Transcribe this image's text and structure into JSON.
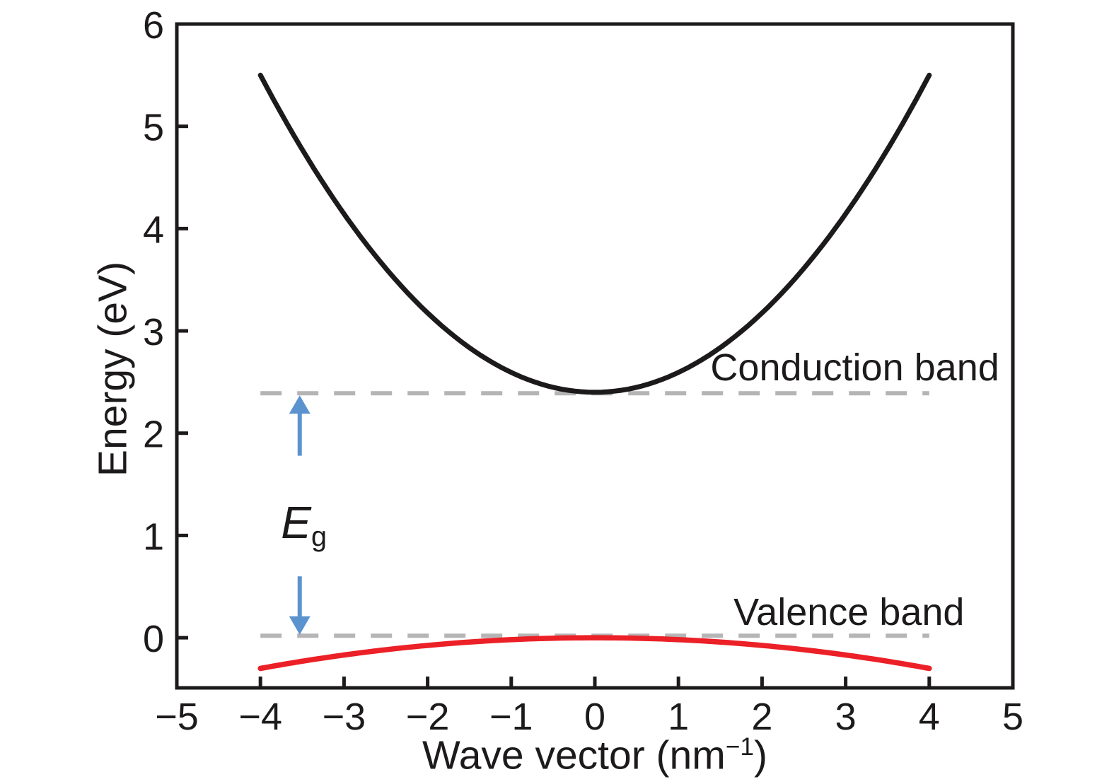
{
  "chart_data": {
    "type": "line",
    "description": "Semiconductor energy band structure: parabolic conduction and valence bands versus wave vector, with band gap Eg indicated",
    "xlabel": {
      "prefix": "Wave vector (nm",
      "sup": "−1",
      "suffix": ")"
    },
    "ylabel": "Energy (eV)",
    "xlim": [
      -5,
      5
    ],
    "ylim": [
      -0.49,
      6
    ],
    "grid": false,
    "legend": "none",
    "axis_color": "#1d1a1b",
    "x_ticks": {
      "values": [
        -5,
        -4,
        -3,
        -2,
        -1,
        0,
        1,
        2,
        3,
        4,
        5
      ],
      "labels": [
        "−5",
        "−4",
        "−3",
        "−2",
        "−1",
        "0",
        "1",
        "2",
        "3",
        "4",
        "5"
      ]
    },
    "y_ticks": {
      "values": [
        0,
        1,
        2,
        3,
        4,
        5,
        6
      ],
      "labels": [
        "0",
        "1",
        "2",
        "3",
        "4",
        "5",
        "6"
      ]
    },
    "series": [
      {
        "name": "Conduction band",
        "shape": "parabola",
        "color": "#1d1a1b",
        "stroke_width": 7,
        "vertex_k": 0,
        "vertex_energy_ev": 2.4,
        "coefficient": 0.19375,
        "k_range": [
          -4,
          4
        ],
        "points": [
          [
            -4,
            5.5
          ],
          [
            -3,
            4.14
          ],
          [
            -2,
            3.18
          ],
          [
            -1,
            2.59
          ],
          [
            0,
            2.4
          ],
          [
            1,
            2.59
          ],
          [
            2,
            3.18
          ],
          [
            3,
            4.14
          ],
          [
            4,
            5.5
          ]
        ]
      },
      {
        "name": "Valence band",
        "shape": "parabola",
        "color": "#ec2027",
        "stroke_width": 7.5,
        "vertex_k": 0,
        "vertex_energy_ev": 0,
        "coefficient": -0.01875,
        "k_range": [
          -4,
          4
        ],
        "points": [
          [
            -4,
            -0.3
          ],
          [
            -3,
            -0.17
          ],
          [
            -2,
            -0.08
          ],
          [
            -1,
            -0.02
          ],
          [
            0,
            0
          ],
          [
            1,
            -0.02
          ],
          [
            2,
            -0.08
          ],
          [
            3,
            -0.17
          ],
          [
            4,
            -0.3
          ]
        ]
      }
    ],
    "reference_lines": [
      {
        "name": "conduction-band-edge",
        "energy_ev": 2.39,
        "k_range": [
          -4,
          4
        ],
        "style": "dashed",
        "color": "#b5b5b5",
        "stroke_width": 6,
        "dash": [
          30,
          22
        ]
      },
      {
        "name": "valence-band-edge",
        "energy_ev": 0.02,
        "k_range": [
          -4,
          4
        ],
        "style": "dashed",
        "color": "#b5b5b5",
        "stroke_width": 6,
        "dash": [
          30,
          22
        ]
      }
    ],
    "annotations": {
      "conduction_label": {
        "text": "Conduction band",
        "x_k": 3.11,
        "y_e": 2.64
      },
      "valence_label": {
        "text": "Valence band",
        "x_k": 3.04,
        "y_e": 0.25
      },
      "band_gap": {
        "symbol": "E",
        "subscript": "g",
        "x_k": -3.48,
        "y_e": 1.13,
        "arrow_color": "#5b93ce",
        "arrows": [
          {
            "direction": "up",
            "x_k": -3.53,
            "from_e": 1.78,
            "to_e": 2.37
          },
          {
            "direction": "down",
            "x_k": -3.53,
            "from_e": 0.6,
            "to_e": 0.03
          }
        ]
      }
    }
  }
}
